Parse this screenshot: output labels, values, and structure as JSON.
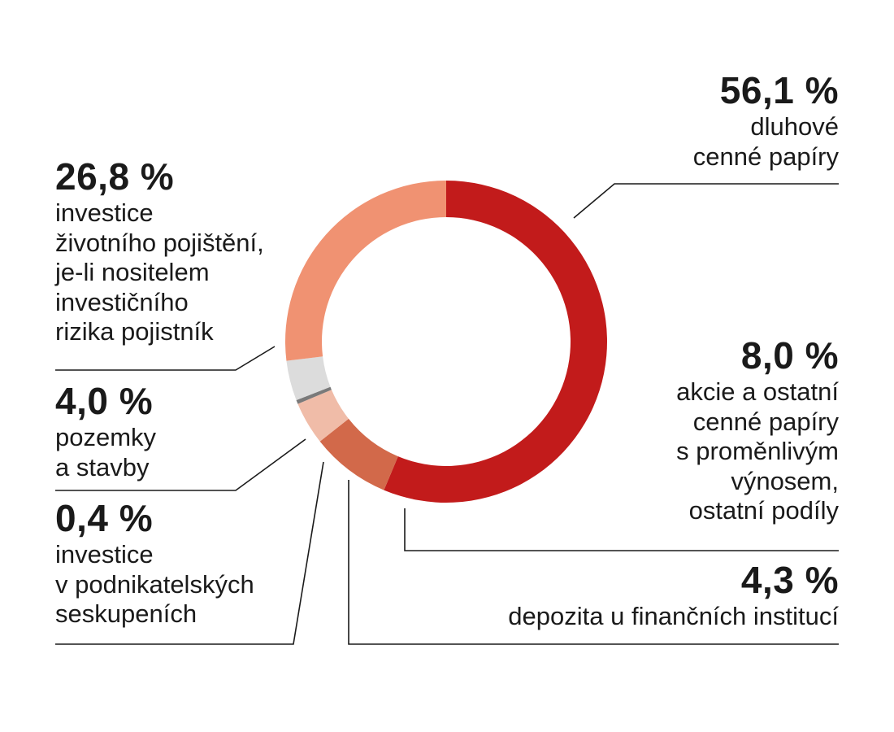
{
  "chart_data": {
    "type": "donut",
    "title": "",
    "slices": [
      {
        "value_label": "56,1 %",
        "value": 56.1,
        "label": "dluhové\ncenné papíry",
        "color": "#c21b1b"
      },
      {
        "value_label": "8,0 %",
        "value": 8.0,
        "label": "akcie a ostatní\ncenné papíry\ns proměnlivým\nvýnosem,\nostatní podíly",
        "color": "#d2694a"
      },
      {
        "value_label": "4,3 %",
        "value": 4.3,
        "label": "depozita u finančních institucí",
        "color": "#f0bca8"
      },
      {
        "value_label": "0,4 %",
        "value": 0.4,
        "label": "investice\nv podnikatelských\nseskupeních",
        "color": "#7a7a7a"
      },
      {
        "value_label": "4,0 %",
        "value": 4.0,
        "label": "pozemky\na stavby",
        "color": "#dcdcdc"
      },
      {
        "value_label": "26,8 %",
        "value": 26.8,
        "label": "investice\nživotního pojištění,\nje-li nositelem\ninvestičního\nrizika pojistník",
        "color": "#f09272"
      }
    ],
    "legend": "none",
    "labels_placement": "around"
  }
}
